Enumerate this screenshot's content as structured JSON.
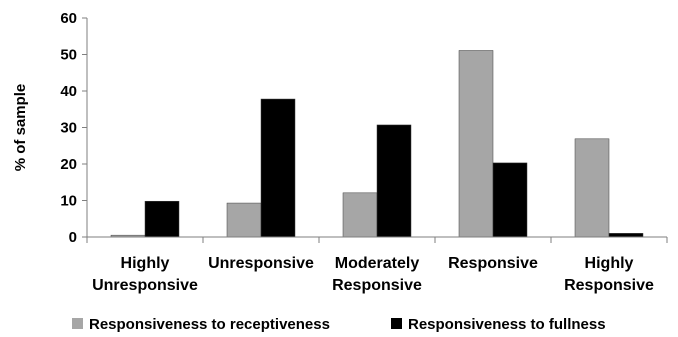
{
  "chart_data": {
    "type": "bar",
    "title": "",
    "xlabel": "",
    "ylabel": "% of sample",
    "ylim": [
      0,
      60
    ],
    "yticks": [
      0,
      10,
      20,
      30,
      40,
      50,
      60
    ],
    "categories": [
      [
        "Highly",
        "Unresponsive"
      ],
      [
        "Unresponsive"
      ],
      [
        "Moderately",
        "Responsive"
      ],
      [
        "Responsive"
      ],
      [
        "Highly",
        "Responsive"
      ]
    ],
    "series": [
      {
        "name": "Responsiveness to receptiveness",
        "color": "#a6a6a6",
        "values": [
          0.5,
          9.3,
          12.1,
          51.1,
          26.9
        ]
      },
      {
        "name": "Responsiveness to fullness",
        "color": "#000000",
        "values": [
          9.8,
          37.8,
          30.7,
          20.3,
          1.0
        ]
      }
    ],
    "grid": false,
    "legend_position": "bottom"
  }
}
